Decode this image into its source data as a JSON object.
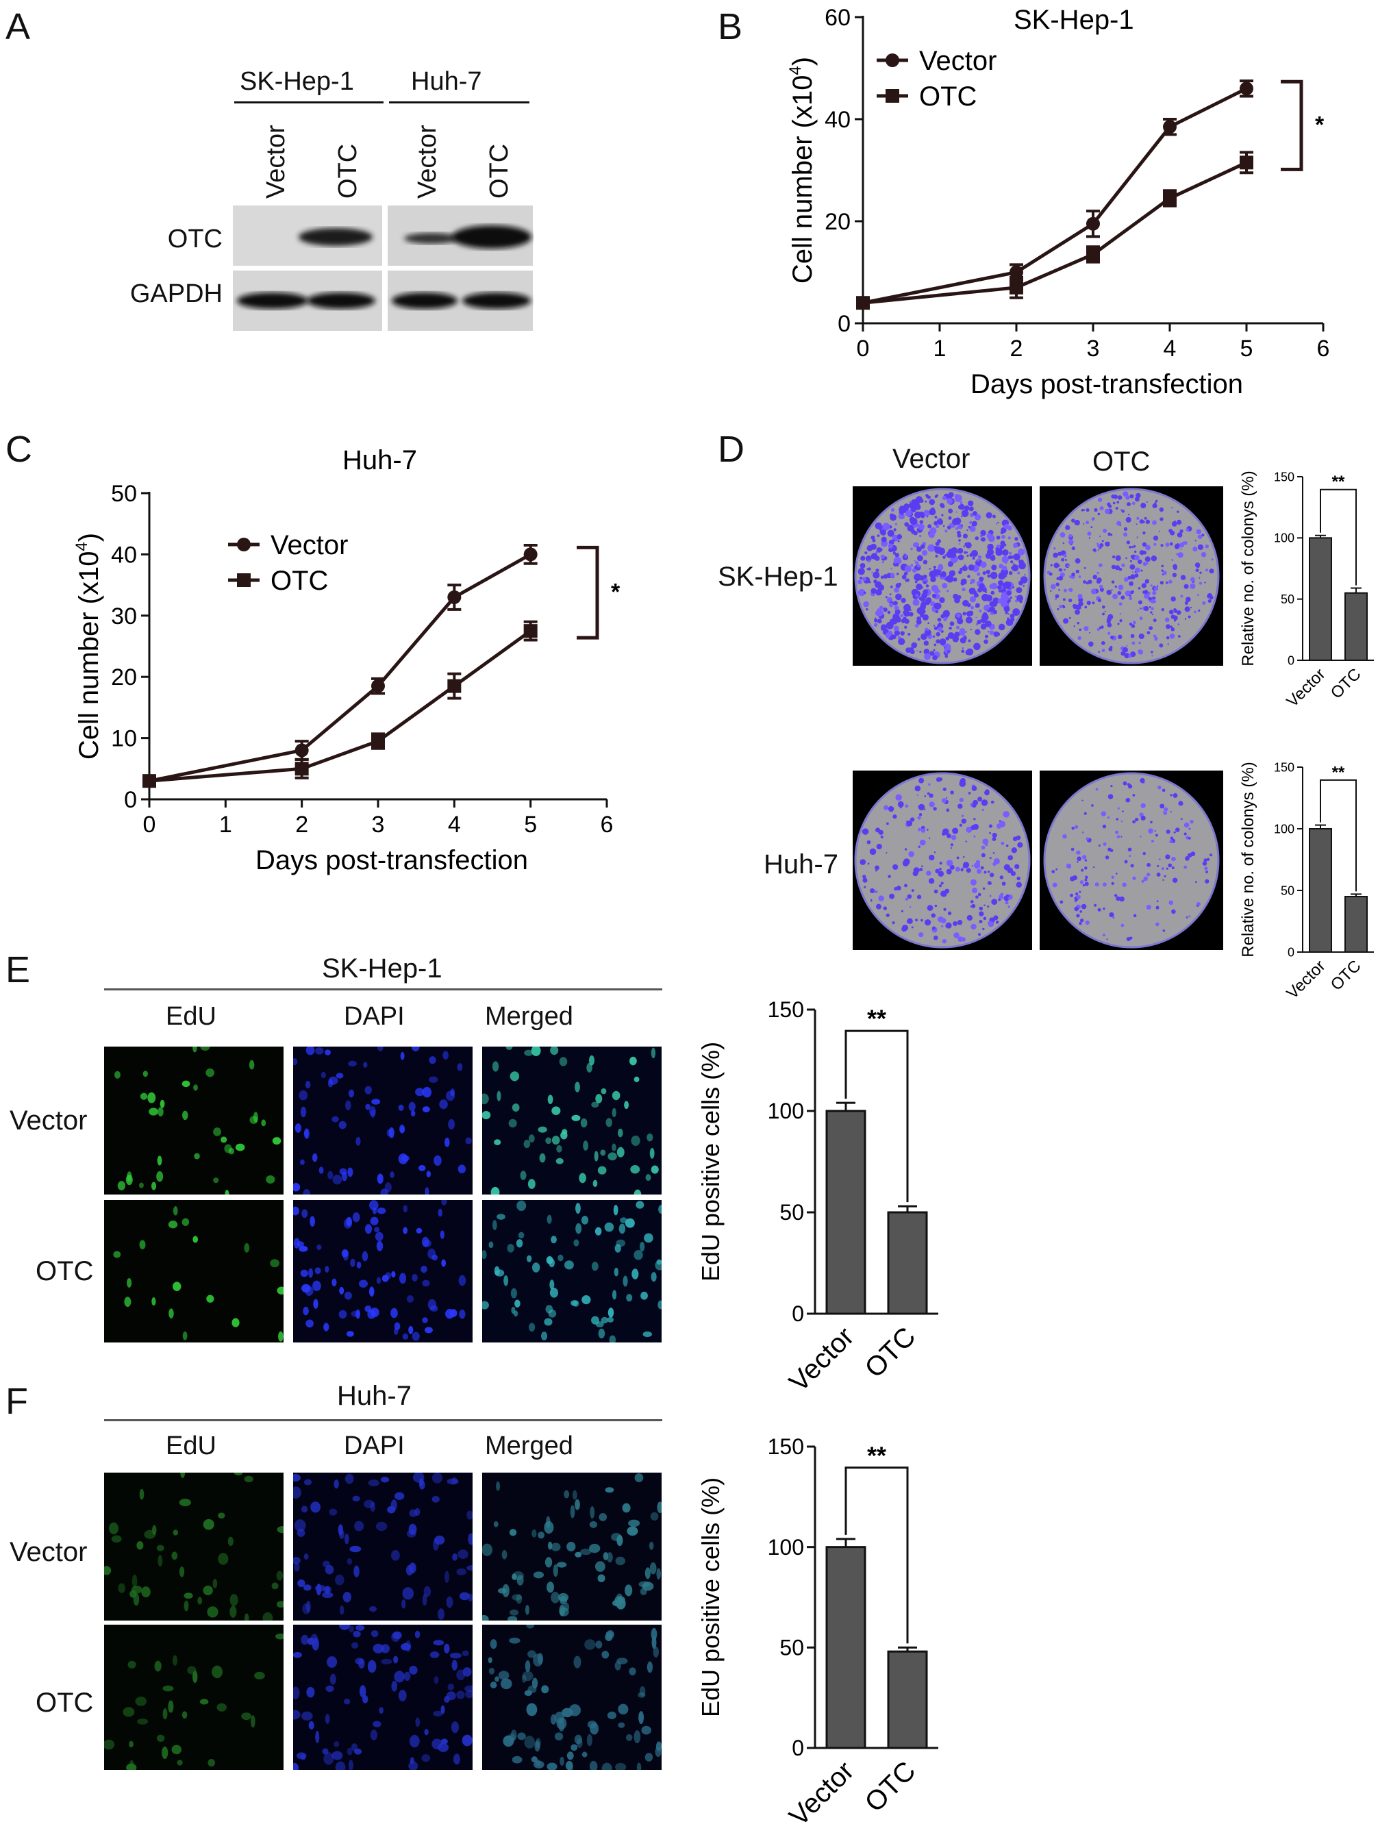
{
  "panels": {
    "A": {
      "letter": "A",
      "groups": [
        "SK-Hep-1",
        "Huh-7"
      ],
      "lanes": [
        "Vector",
        "OTC",
        "Vector",
        "OTC"
      ],
      "rows": [
        "OTC",
        "GAPDH"
      ]
    },
    "D": {
      "letter": "D",
      "col_headers": [
        "Vector",
        "OTC"
      ],
      "row_labels": [
        "SK-Hep-1",
        "Huh-7"
      ]
    },
    "E": {
      "letter": "E",
      "title": "SK-Hep-1",
      "col_headers": [
        "EdU",
        "DAPI",
        "Merged"
      ],
      "row_labels": [
        "Vector",
        "OTC"
      ]
    },
    "F": {
      "letter": "F",
      "title": "Huh-7",
      "col_headers": [
        "EdU",
        "DAPI",
        "Merged"
      ],
      "row_labels": [
        "Vector",
        "OTC"
      ]
    }
  },
  "chart_data": [
    {
      "id": "B",
      "letter": "B",
      "type": "line",
      "title": "SK-Hep-1",
      "xlabel": "Days post-transfection",
      "ylabel": "Cell number (x10",
      "ylabel_sup": "4",
      "ylabel_close": ")",
      "xlim": [
        0,
        6
      ],
      "ylim": [
        0,
        60
      ],
      "xticks": [
        0,
        1,
        2,
        3,
        4,
        5,
        6
      ],
      "yticks": [
        0,
        20,
        40,
        60
      ],
      "x": [
        0,
        2,
        3,
        4,
        5
      ],
      "series": [
        {
          "name": "Vector",
          "marker": "circle",
          "values": [
            4,
            10,
            19.5,
            38.5,
            46
          ],
          "errors": [
            0.8,
            1.5,
            2.5,
            1.5,
            1.5
          ]
        },
        {
          "name": "OTC",
          "marker": "square",
          "values": [
            4,
            7,
            13.5,
            24.5,
            31.5
          ],
          "errors": [
            0.8,
            2,
            1.5,
            1.5,
            2
          ]
        }
      ],
      "significance": "*",
      "legend_position": "top-left"
    },
    {
      "id": "C",
      "letter": "C",
      "type": "line",
      "title": "Huh-7",
      "xlabel": "Days post-transfection",
      "ylabel": "Cell number (x10",
      "ylabel_sup": "4",
      "ylabel_close": ")",
      "xlim": [
        0,
        6
      ],
      "ylim": [
        0,
        50
      ],
      "xticks": [
        0,
        1,
        2,
        3,
        4,
        5,
        6
      ],
      "yticks": [
        0,
        10,
        20,
        30,
        40,
        50
      ],
      "x": [
        0,
        2,
        3,
        4,
        5
      ],
      "series": [
        {
          "name": "Vector",
          "marker": "circle",
          "values": [
            3,
            8,
            18.5,
            33,
            40
          ],
          "errors": [
            0.6,
            1.5,
            1.2,
            2,
            1.5
          ]
        },
        {
          "name": "OTC",
          "marker": "square",
          "values": [
            3,
            5,
            9.5,
            18.5,
            27.5
          ],
          "errors": [
            0.6,
            1.5,
            1.2,
            2,
            1.5
          ]
        }
      ],
      "significance": "*",
      "legend_position": "top-left"
    },
    {
      "id": "D1",
      "type": "bar",
      "categories": [
        "Vector",
        "OTC"
      ],
      "values": [
        100,
        55
      ],
      "errors": [
        2,
        4
      ],
      "ylabel": "Relative no. of colonys (%)",
      "ylim": [
        0,
        150
      ],
      "yticks": [
        0,
        50,
        100,
        150
      ],
      "significance": "**"
    },
    {
      "id": "D2",
      "type": "bar",
      "categories": [
        "Vector",
        "OTC"
      ],
      "values": [
        100,
        45
      ],
      "errors": [
        3,
        2
      ],
      "ylabel": "Relative no. of colonys (%)",
      "ylim": [
        0,
        150
      ],
      "yticks": [
        0,
        50,
        100,
        150
      ],
      "significance": "**"
    },
    {
      "id": "E",
      "type": "bar",
      "categories": [
        "Vector",
        "OTC"
      ],
      "values": [
        100,
        50
      ],
      "errors": [
        4,
        3
      ],
      "ylabel": "EdU positive cells (%)",
      "ylim": [
        0,
        150
      ],
      "yticks": [
        0,
        50,
        100,
        150
      ],
      "significance": "**"
    },
    {
      "id": "F",
      "type": "bar",
      "categories": [
        "Vector",
        "OTC"
      ],
      "values": [
        100,
        48
      ],
      "errors": [
        4,
        2
      ],
      "ylabel": "EdU positive cells (%)",
      "ylim": [
        0,
        150
      ],
      "yticks": [
        0,
        50,
        100,
        150
      ],
      "significance": "**"
    }
  ]
}
